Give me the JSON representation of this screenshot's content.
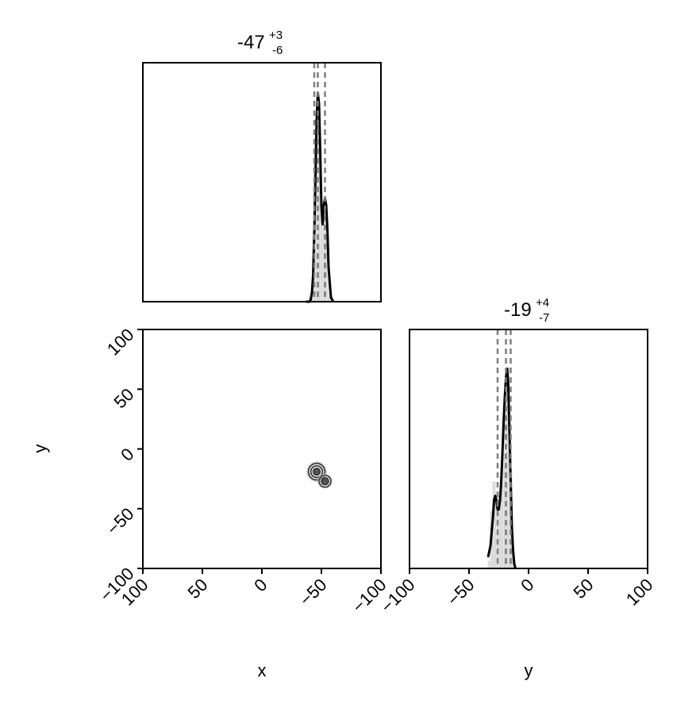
{
  "chart_data": [
    {
      "type": "histogram",
      "panel": "x marginal",
      "title": {
        "median": "-47",
        "plus": "+3",
        "minus": "-6"
      },
      "xlim": [
        100,
        -100
      ],
      "quantiles": [
        -53,
        -47,
        -44
      ],
      "bins": {
        "x": [
          -59,
          -57,
          -55,
          -53,
          -51,
          -49,
          -47,
          -45,
          -43,
          -41,
          -39,
          -37
        ],
        "values": [
          0.0,
          0.02,
          0.3,
          0.46,
          0.38,
          0.6,
          0.95,
          0.5,
          0.08,
          0.02,
          0.0,
          0.0
        ]
      },
      "kde": {
        "x": [
          -60,
          -58,
          -56,
          -55,
          -54,
          -53,
          -52,
          -51,
          -50,
          -49,
          -48,
          -47,
          -46,
          -45,
          -44,
          -43,
          -42,
          -41,
          -40,
          -39,
          -37
        ],
        "y": [
          0.0,
          0.02,
          0.16,
          0.34,
          0.45,
          0.48,
          0.45,
          0.36,
          0.44,
          0.7,
          0.92,
          0.97,
          0.85,
          0.6,
          0.32,
          0.12,
          0.04,
          0.01,
          0.0,
          0.0,
          0.0
        ]
      }
    },
    {
      "type": "scatter",
      "panel": "x vs y joint",
      "xlabel": "x",
      "ylabel": "y",
      "xlim": [
        100,
        -100
      ],
      "ylim": [
        -100,
        100
      ],
      "xticks": [
        "100",
        "50",
        "0",
        "-50",
        "-100"
      ],
      "yticks": [
        "-100",
        "-50",
        "0",
        "50",
        "100"
      ],
      "clusters": [
        {
          "center": [
            -46,
            -19
          ],
          "radius": 7,
          "rings": [
            1.0,
            0.7,
            0.4
          ]
        },
        {
          "center": [
            -53,
            -27
          ],
          "radius": 5,
          "rings": [
            1.0,
            0.6
          ]
        }
      ]
    },
    {
      "type": "histogram",
      "panel": "y marginal",
      "title": {
        "median": "-19",
        "plus": "+4",
        "minus": "-7"
      },
      "xlabel": "y",
      "xlim": [
        -100,
        100
      ],
      "xticks": [
        "-100",
        "-50",
        "0",
        "50",
        "100"
      ],
      "quantiles": [
        -26,
        -19,
        -15
      ],
      "bins": {
        "x": [
          -33,
          -31,
          -29,
          -27,
          -25,
          -23,
          -21,
          -19,
          -17,
          -15,
          -13,
          -11
        ],
        "values": [
          0.03,
          0.25,
          0.38,
          0.33,
          0.3,
          0.35,
          0.5,
          0.8,
          0.88,
          0.42,
          0.05,
          0.0
        ]
      },
      "kde": {
        "x": [
          -34,
          -32,
          -30,
          -29,
          -28,
          -27,
          -26,
          -25,
          -24,
          -23,
          -22,
          -21,
          -20,
          -19,
          -18,
          -17,
          -16,
          -15,
          -14,
          -13,
          -12,
          -11
        ],
        "y": [
          0.05,
          0.1,
          0.22,
          0.3,
          0.32,
          0.3,
          0.26,
          0.26,
          0.3,
          0.38,
          0.5,
          0.64,
          0.75,
          0.84,
          0.88,
          0.8,
          0.6,
          0.38,
          0.18,
          0.08,
          0.02,
          0.0
        ]
      }
    }
  ]
}
